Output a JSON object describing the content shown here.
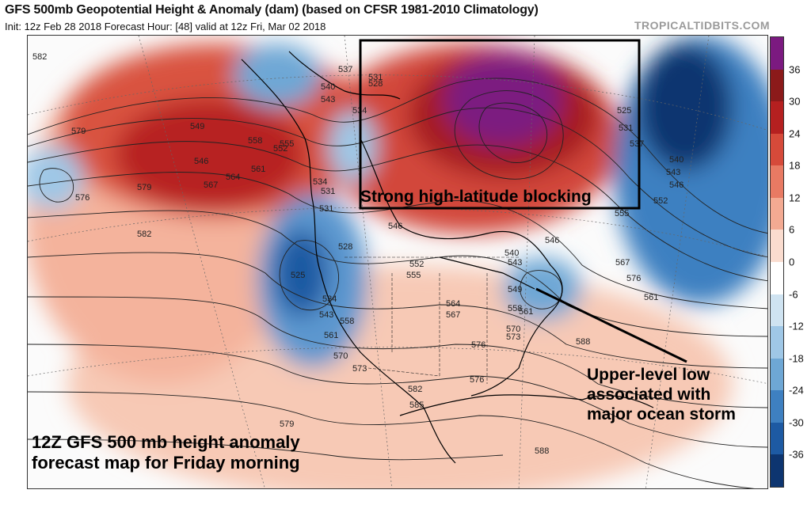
{
  "header": {
    "title": "GFS 500mb Geopotential Height & Anomaly (dam) (based on CFSR 1981-2010 Climatology)",
    "subtitle": "Init: 12z Feb 28 2018   Forecast Hour: [48]   valid at 12z Fri, Mar 02 2018",
    "brand": "TROPICALTIDBITS.COM"
  },
  "annotations": {
    "blocking": "Strong high-latitude blocking",
    "low_line1": "Upper-level low",
    "low_line2": "associated with",
    "low_line3": "major ocean storm",
    "caption_line1": "12Z GFS 500 mb height anomaly",
    "caption_line2": "forecast map for Friday morning"
  },
  "colorbar": {
    "labels": [
      "36",
      "30",
      "24",
      "18",
      "12",
      "6",
      "0",
      "-6",
      "-12",
      "-18",
      "-24",
      "-30",
      "-36"
    ],
    "colors": [
      "#7b1a80",
      "#8b1a1a",
      "#b52020",
      "#d64a3a",
      "#e87a63",
      "#f3aa92",
      "#fadccf",
      "#ffffff",
      "#cfe3f1",
      "#9fc7e6",
      "#6ea7d5",
      "#3e80c1",
      "#1d5aa3",
      "#0d3570"
    ]
  },
  "contour_labels": [
    "582",
    "579",
    "576",
    "582",
    "579",
    "537",
    "531",
    "528",
    "534",
    "540",
    "543",
    "549",
    "555",
    "558",
    "552",
    "546",
    "561",
    "564",
    "567",
    "534",
    "531",
    "531",
    "528",
    "525",
    "534",
    "543",
    "558",
    "561",
    "570",
    "573",
    "576",
    "579",
    "546",
    "552",
    "555",
    "564",
    "567",
    "573",
    "570",
    "576",
    "540",
    "543",
    "546",
    "549",
    "558",
    "561",
    "582",
    "585",
    "588",
    "588",
    "576",
    "567",
    "525",
    "531",
    "537",
    "540",
    "543",
    "546",
    "552",
    "555",
    "561"
  ]
}
